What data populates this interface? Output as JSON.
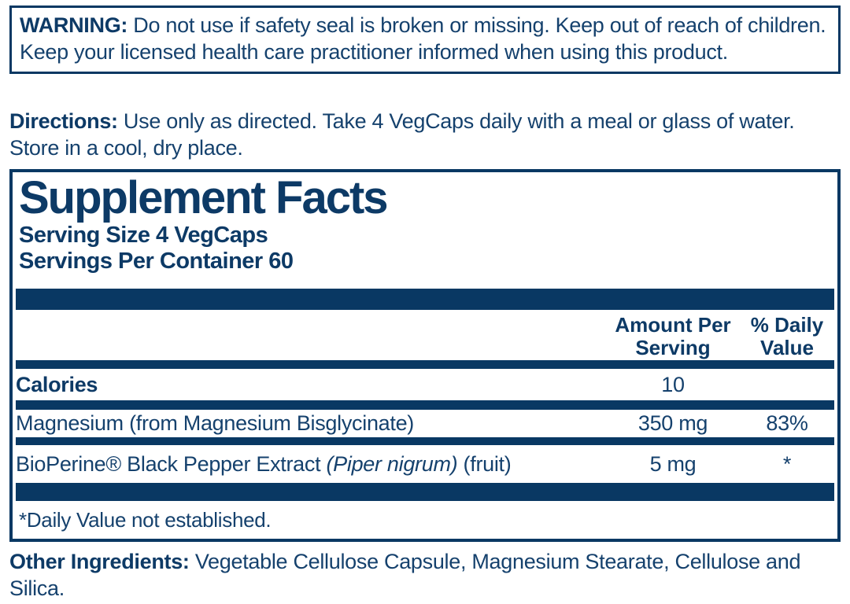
{
  "colors": {
    "navy_bars": "#093863",
    "text": "#15416d",
    "background": "#ffffff"
  },
  "warning": {
    "label": "WARNING:",
    "text": " Do not use if safety seal is broken or missing. Keep out of reach of children. Keep your licensed health care practitioner informed when using this product."
  },
  "directions": {
    "label": "Directions:",
    "text": " Use only as directed. Take 4 VegCaps daily with a meal or glass of water. Store in a cool, dry place."
  },
  "supplement_facts": {
    "title": "Supplement Facts",
    "serving_size": "Serving Size 4 VegCaps",
    "servings_per_container": "Servings Per Container 60",
    "columns": {
      "amount_line1": "Amount Per",
      "amount_line2": "Serving",
      "dv_line1": "% Daily",
      "dv_line2": "Value"
    },
    "rows": [
      {
        "name": "Calories",
        "amount": "10",
        "dv": ""
      },
      {
        "name": "Magnesium (from Magnesium Bisglycinate)",
        "amount": "350 mg",
        "dv": "83%"
      },
      {
        "name_pre": "BioPerine® Black Pepper Extract ",
        "name_italic": "(Piper nigrum)",
        "name_post": " (fruit)",
        "amount": "5 mg",
        "dv": "*"
      }
    ],
    "footnote": "*Daily Value not established."
  },
  "other_ingredients": {
    "label": "Other Ingredients:",
    "text": " Vegetable Cellulose Capsule, Magnesium Stearate, Cellulose and Silica."
  }
}
